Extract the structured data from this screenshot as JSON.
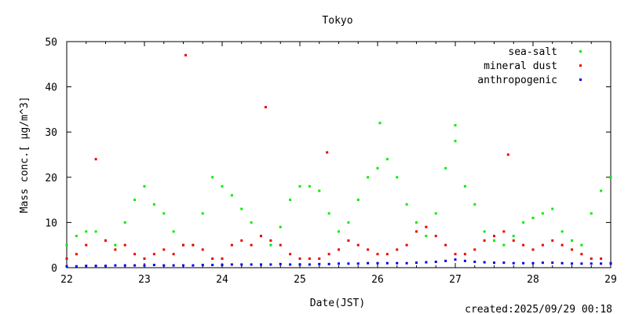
{
  "chart_data": {
    "type": "scatter",
    "title": "Tokyo",
    "xlabel": "Date(JST)",
    "ylabel": "Mass conc.[ μg/m^3]",
    "xlim": [
      22,
      29
    ],
    "ylim": [
      0,
      50
    ],
    "xticks": [
      22,
      23,
      24,
      25,
      26,
      27,
      28,
      29
    ],
    "yticks": [
      0,
      10,
      20,
      30,
      40,
      50
    ],
    "x_step_days": 0.125,
    "legend_position": "top-right",
    "series": [
      {
        "name": "sea-salt",
        "color": "#00ee00",
        "values": [
          5,
          7,
          8,
          8,
          6,
          5,
          10,
          15,
          18,
          14,
          12,
          8,
          5,
          5,
          12,
          20,
          18,
          16,
          13,
          10,
          7,
          5,
          9,
          15,
          18,
          18,
          17,
          12,
          8,
          10,
          15,
          20,
          22,
          24,
          20,
          14,
          10,
          7,
          12,
          22,
          28,
          18,
          14,
          8,
          6,
          5,
          7,
          10,
          11,
          12,
          13,
          8,
          6,
          5,
          12,
          17,
          20
        ]
      },
      {
        "name": "mineral dust",
        "color": "#ee0000",
        "values": [
          2,
          3,
          5,
          24,
          6,
          4,
          5,
          3,
          2,
          3,
          4,
          3,
          5,
          5,
          4,
          2,
          2,
          5,
          6,
          5,
          7,
          6,
          5,
          3,
          2,
          2,
          2,
          3,
          4,
          6,
          5,
          4,
          3,
          3,
          4,
          5,
          8,
          9,
          7,
          5,
          3,
          3,
          4,
          6,
          7,
          8,
          6,
          5,
          4,
          5,
          6,
          5,
          4,
          3,
          2,
          2,
          1
        ]
      },
      {
        "name": "anthropogenic",
        "color": "#0000ee",
        "values": [
          0.3,
          0.3,
          0.4,
          0.4,
          0.4,
          0.5,
          0.5,
          0.5,
          0.5,
          0.6,
          0.5,
          0.5,
          0.5,
          0.5,
          0.6,
          0.6,
          0.6,
          0.7,
          0.7,
          0.7,
          0.7,
          0.7,
          0.8,
          0.7,
          0.7,
          0.7,
          0.8,
          0.8,
          0.9,
          0.9,
          0.9,
          1.0,
          1.0,
          1.0,
          1.0,
          1.0,
          1.1,
          1.2,
          1.3,
          1.5,
          1.8,
          1.5,
          1.3,
          1.2,
          1.1,
          1.1,
          1.0,
          1.0,
          1.0,
          1.1,
          1.1,
          1.0,
          0.9,
          0.9,
          0.9,
          0.9,
          0.9
        ]
      }
    ],
    "outliers": [
      {
        "series": "mineral dust",
        "x": 23.53,
        "y": 47
      },
      {
        "series": "mineral dust",
        "x": 24.56,
        "y": 35.5
      },
      {
        "series": "mineral dust",
        "x": 25.35,
        "y": 25.5
      },
      {
        "series": "mineral dust",
        "x": 27.68,
        "y": 25
      },
      {
        "series": "sea-salt",
        "x": 26.03,
        "y": 32
      },
      {
        "series": "sea-salt",
        "x": 27.0,
        "y": 31.5
      }
    ]
  },
  "footer": {
    "created": "created:2025/09/29 00:18"
  }
}
